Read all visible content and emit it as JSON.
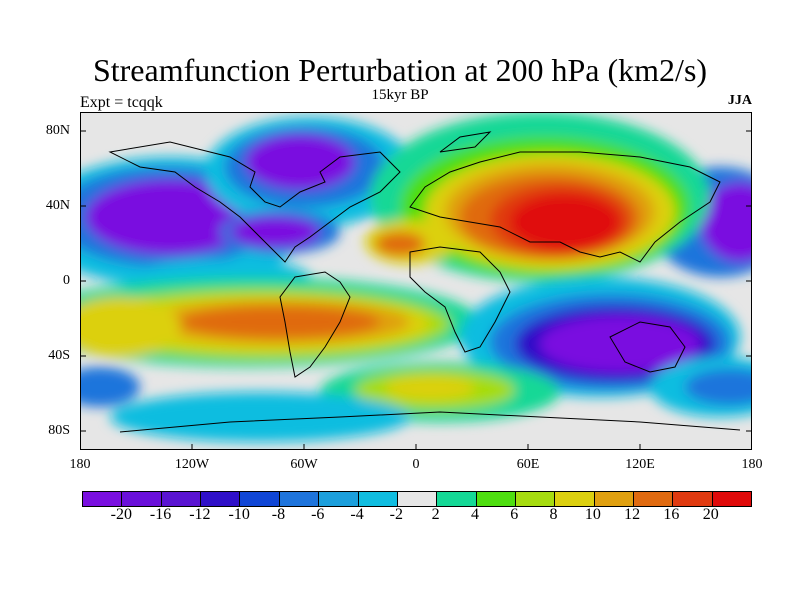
{
  "title": "Streamfunction Perturbation at 200 hPa (km2/s)",
  "subtitle": "15kyr BP",
  "left_label": "Expt = tcqqk",
  "right_label": "JJA",
  "y_ticks": [
    "80N",
    "40N",
    "0",
    "40S",
    "80S"
  ],
  "x_ticks": [
    "180",
    "120W",
    "60W",
    "0",
    "60E",
    "120E",
    "180"
  ],
  "colorbar": {
    "colors": [
      "#7a0fe0",
      "#6a10da",
      "#5a14d2",
      "#2f10c8",
      "#1046d6",
      "#1e74dc",
      "#1c9fdc",
      "#10bde0",
      "#e6e6e6",
      "#14d896",
      "#4ede10",
      "#a6dc10",
      "#dcd010",
      "#e0a010",
      "#e06a10",
      "#e03a10",
      "#e00a0a"
    ],
    "labels": [
      "-20",
      "-16",
      "-12",
      "-10",
      "-8",
      "-6",
      "-4",
      "-2",
      "2",
      "4",
      "6",
      "8",
      "10",
      "12",
      "16",
      "20"
    ]
  },
  "map_colors": {
    "ocean_bg": "#e6e6e6",
    "purple": "#7a0fe0",
    "deep_blue": "#2f10c8",
    "blue": "#1e74dc",
    "cyan": "#10bde0",
    "green": "#14d896",
    "lime": "#4ede10",
    "yellow": "#dcd010",
    "orange": "#e06a10",
    "red": "#e00a0a"
  }
}
